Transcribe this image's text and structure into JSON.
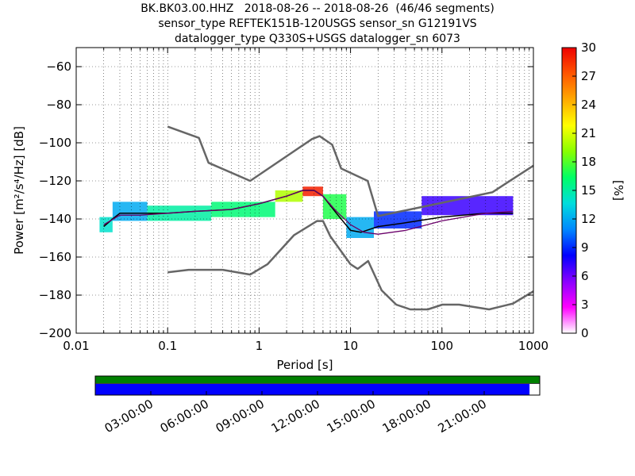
{
  "title_lines": [
    "BK.BK03.00.HHZ   2018-08-26 -- 2018-08-26  (46/46 segments)",
    "sensor_type REFTEK151B-120USGS sensor_sn G12191VS",
    "datalogger_type Q330S+USGS datalogger_sn 6073"
  ],
  "chart_data": {
    "type": "heatmap",
    "title": "BK.BK03.00.HHZ   2018-08-26 -- 2018-08-26  (46/46 segments)",
    "xlabel": "Period [s]",
    "ylabel": "Power [m²/s⁴/Hz] [dB]",
    "xscale": "log",
    "xlim": [
      0.01,
      1000
    ],
    "ylim": [
      -200,
      -50
    ],
    "xticks": [
      0.01,
      0.1,
      1,
      10,
      100,
      1000
    ],
    "xtick_labels": [
      "0.01",
      "0.1",
      "1",
      "10",
      "100",
      "1000"
    ],
    "yticks": [
      -200,
      -180,
      -160,
      -140,
      -120,
      -100,
      -80,
      -60
    ],
    "grid": true,
    "colorbar": {
      "label": "[%]",
      "range": [
        0,
        30
      ],
      "ticks": [
        0,
        3,
        6,
        9,
        12,
        15,
        18,
        21,
        24,
        27,
        30
      ]
    },
    "series": [
      {
        "name": "",
        "kind": "noise-model-high",
        "x": [
          0.1,
          0.22,
          0.28,
          0.8,
          3.8,
          4.6,
          6.3,
          7.9,
          15.4,
          20,
          354.8,
          1000
        ],
        "y": [
          -91.5,
          -97.4,
          -110.5,
          -120,
          -98,
          -96.5,
          -101,
          -113.5,
          -120,
          -138.5,
          -126,
          -112
        ]
      },
      {
        "name": "",
        "kind": "noise-model-low",
        "x": [
          0.1,
          0.17,
          0.4,
          0.8,
          1.24,
          2.4,
          4.3,
          5,
          6,
          10,
          12,
          15.6,
          21.9,
          31.6,
          45,
          70,
          101,
          154,
          328,
          600,
          1000
        ],
        "y": [
          -168,
          -166.7,
          -166.7,
          -169.2,
          -163.7,
          -148.6,
          -141.1,
          -141.1,
          -149,
          -163.8,
          -166.2,
          -162.1,
          -177.5,
          -185,
          -187.5,
          -187.5,
          -185,
          -185,
          -187.5,
          -184.4,
          -178
        ]
      },
      {
        "name": "",
        "kind": "mode",
        "x": [
          0.02,
          0.025,
          0.03,
          0.05,
          0.1,
          0.2,
          0.5,
          1,
          2,
          3,
          4,
          5,
          7,
          10,
          13,
          20,
          40,
          100,
          300,
          600
        ],
        "y": [
          -144,
          -140,
          -137,
          -137,
          -137,
          -136,
          -135,
          -132,
          -128,
          -125,
          -125,
          -128,
          -137,
          -146,
          -147,
          -144,
          -142,
          -139,
          -137,
          -137
        ]
      },
      {
        "name": "",
        "kind": "mean",
        "x": [
          0.02,
          0.03,
          0.05,
          0.1,
          0.2,
          0.5,
          1,
          2,
          3,
          4,
          5,
          7,
          10,
          14,
          20,
          40,
          100,
          300,
          600
        ],
        "y": [
          -143,
          -138,
          -138,
          -137,
          -136,
          -135,
          -132,
          -128,
          -125,
          -125,
          -128,
          -136,
          -143,
          -147,
          -148,
          -146,
          -141,
          -137,
          -136
        ]
      }
    ],
    "heatmap_bands": [
      {
        "x": [
          0.018,
          0.025
        ],
        "y": [
          -147,
          -139
        ],
        "percent": 14
      },
      {
        "x": [
          0.025,
          0.06
        ],
        "y": [
          -141,
          -131
        ],
        "percent": 12
      },
      {
        "x": [
          0.06,
          0.3
        ],
        "y": [
          -141,
          -133
        ],
        "percent": 15
      },
      {
        "x": [
          0.3,
          1.5
        ],
        "y": [
          -139,
          -131
        ],
        "percent": 16
      },
      {
        "x": [
          1.5,
          3
        ],
        "y": [
          -131,
          -125
        ],
        "percent": 20
      },
      {
        "x": [
          3,
          5
        ],
        "y": [
          -128,
          -123
        ],
        "percent": 29
      },
      {
        "x": [
          5,
          9
        ],
        "y": [
          -140,
          -127
        ],
        "percent": 17
      },
      {
        "x": [
          9,
          18
        ],
        "y": [
          -150,
          -139
        ],
        "percent": 12
      },
      {
        "x": [
          18,
          60
        ],
        "y": [
          -145,
          -136
        ],
        "percent": 9
      },
      {
        "x": [
          60,
          600
        ],
        "y": [
          -138,
          -128
        ],
        "percent": 7
      }
    ],
    "time_axis": {
      "labels": [
        "03:00:00",
        "06:00:00",
        "09:00:00",
        "12:00:00",
        "15:00:00",
        "18:00:00",
        "21:00:00"
      ],
      "coverage_fraction": 0.977
    }
  },
  "colors": {
    "noise_model": "#666666",
    "mode": "#000000",
    "mean": "#6a006a",
    "coverage_data": "#0000ff",
    "coverage_segments": "#008000",
    "colorbar_stops": [
      "#ffffff",
      "#ff00ff",
      "#8800ff",
      "#0000ff",
      "#0088ff",
      "#00dddd",
      "#00ff66",
      "#88ff00",
      "#ffff00",
      "#ffaa00",
      "#ff5500",
      "#ee0000"
    ]
  }
}
